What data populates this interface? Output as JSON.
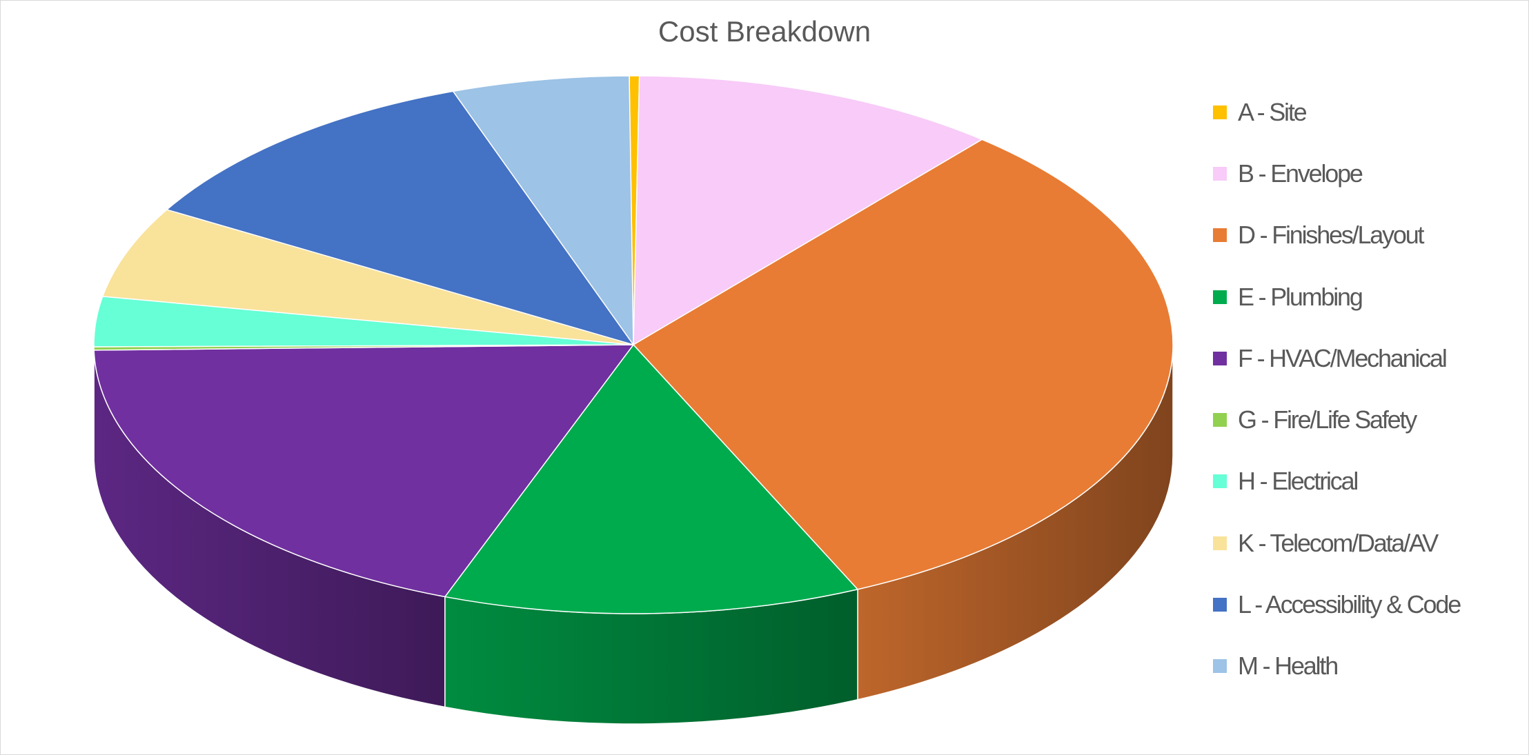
{
  "chart_data": {
    "type": "pie",
    "title": "Cost Breakdown",
    "legend_position": "right",
    "three_d": true,
    "slices": [
      {
        "label": "A - Site",
        "value": 0.3,
        "color": "#FFC000"
      },
      {
        "label": "B - Envelope",
        "value": 11.0,
        "color": "#F8CBF8"
      },
      {
        "label": "D - Finishes/Layout",
        "value": 32.0,
        "color": "#E87C34"
      },
      {
        "label": "E - Plumbing",
        "value": 12.5,
        "color": "#00AB4E"
      },
      {
        "label": "F - HVAC/Mechanical",
        "value": 19.0,
        "color": "#7030A0"
      },
      {
        "label": "G - Fire/Life Safety",
        "value": 0.2,
        "color": "#92D050"
      },
      {
        "label": "H - Electrical",
        "value": 3.0,
        "color": "#66FFD6"
      },
      {
        "label": "K - Telecom/Data/AV",
        "value": 5.5,
        "color": "#F9E29A"
      },
      {
        "label": "L - Accessibility & Code",
        "value": 11.2,
        "color": "#4472C4"
      },
      {
        "label": "M - Health",
        "value": 5.3,
        "color": "#9DC3E6"
      }
    ]
  }
}
